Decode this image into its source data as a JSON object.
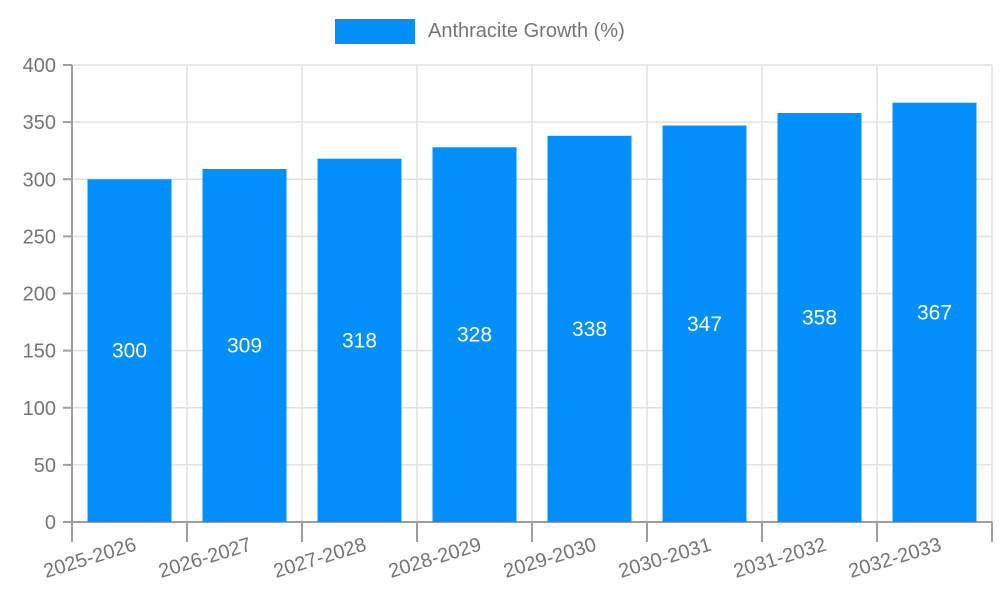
{
  "chart_data": {
    "type": "bar",
    "title": "",
    "xlabel": "",
    "ylabel": "",
    "categories": [
      "2025-2026",
      "2026-2027",
      "2027-2028",
      "2028-2029",
      "2029-2030",
      "2030-2031",
      "2031-2032",
      "2032-2033"
    ],
    "series": [
      {
        "name": "Anthracite Growth (%)",
        "color": "#008FFB",
        "values": [
          300,
          309,
          318,
          328,
          338,
          347,
          358,
          367
        ]
      }
    ],
    "ylim": [
      0,
      400
    ],
    "ytick_step": 50,
    "ytick_labels": [
      "0",
      "50",
      "100",
      "150",
      "200",
      "250",
      "300",
      "350",
      "400"
    ],
    "grid": true,
    "legend_position": "top-center",
    "data_labels": {
      "visible": true,
      "color": "#ffffff",
      "position": "inside-half-height"
    },
    "colors": {
      "bar": "#008FFB",
      "axis_label": "#757575",
      "grid_line": "#e0e0e0",
      "axis_line": "#9e9e9e",
      "data_label": "#ffffff",
      "legend_text": "#757575"
    }
  }
}
